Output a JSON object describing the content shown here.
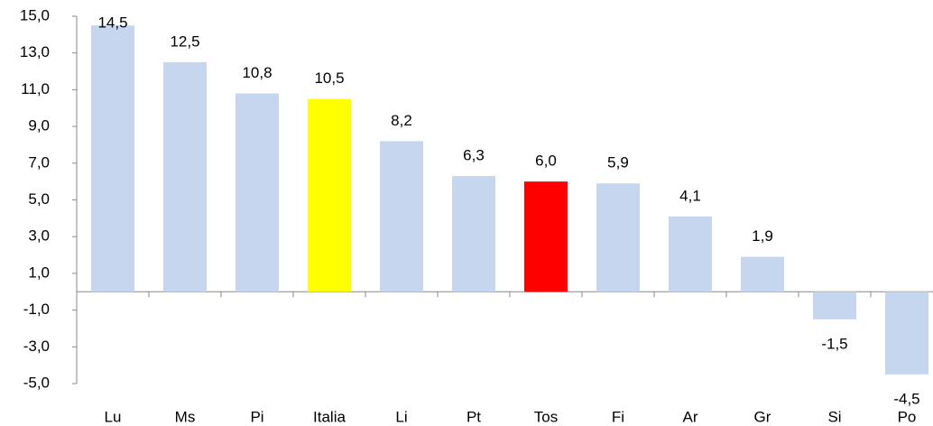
{
  "chart_data": {
    "type": "bar",
    "categories": [
      "Lu",
      "Ms",
      "Pi",
      "Italia",
      "Li",
      "Pt",
      "Tos",
      "Fi",
      "Ar",
      "Gr",
      "Si",
      "Po"
    ],
    "values": [
      14.5,
      12.5,
      10.8,
      10.5,
      8.2,
      6.3,
      6.0,
      5.9,
      4.1,
      1.9,
      -1.5,
      -4.5
    ],
    "value_labels": [
      "14,5",
      "12,5",
      "10,8",
      "10,5",
      "8,2",
      "6,3",
      "6,0",
      "5,9",
      "4,1",
      "1,9",
      "-1,5",
      "-4,5"
    ],
    "colors": [
      "#c6d6ef",
      "#c6d6ef",
      "#c6d6ef",
      "#ffff00",
      "#c6d6ef",
      "#c6d6ef",
      "#ff0000",
      "#c6d6ef",
      "#c6d6ef",
      "#c6d6ef",
      "#c6d6ef",
      "#c6d6ef"
    ],
    "ylim": [
      -5,
      15
    ],
    "yticks": [
      {
        "value": -5,
        "label": "-5,0"
      },
      {
        "value": -3,
        "label": "-3,0"
      },
      {
        "value": -1,
        "label": "-1,0"
      },
      {
        "value": 1,
        "label": "1,0"
      },
      {
        "value": 3,
        "label": "3,0"
      },
      {
        "value": 5,
        "label": "5,0"
      },
      {
        "value": 7,
        "label": "7,0"
      },
      {
        "value": 9,
        "label": "9,0"
      },
      {
        "value": 11,
        "label": "11,0"
      },
      {
        "value": 13,
        "label": "13,0"
      },
      {
        "value": 15,
        "label": "15,0"
      }
    ],
    "grid": false
  }
}
